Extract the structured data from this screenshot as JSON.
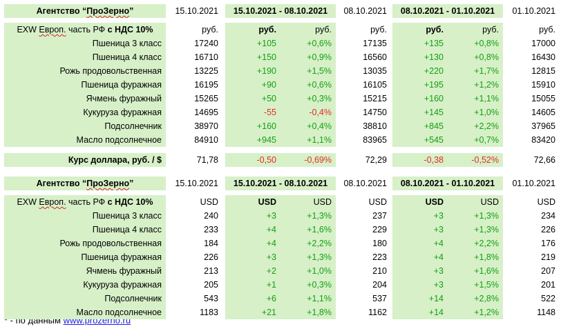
{
  "colors": {
    "band": "#d7f0c8",
    "positive": "#13a013",
    "negative": "#e52b2b",
    "link": "#1a1ae0"
  },
  "rub": {
    "header": {
      "agency": "Агентство “ПроЗерно”",
      "d1": "15.10.2021",
      "p1": "15.10.2021 - 08.10.2021",
      "d2": "08.10.2021",
      "p2": "08.10.2021 - 01.10.2021",
      "d3": "01.10.2021"
    },
    "units": {
      "label": "EXW Европ. часть РФ с НДС 10%",
      "c1": "руб.",
      "c2": "руб.",
      "c3": "руб.",
      "c4": "руб.",
      "c5": "руб.",
      "c6": "руб.",
      "c7": "руб."
    },
    "rows": [
      [
        "Пшеница 3 класс",
        "17240",
        "+105",
        "+0,6%",
        "17135",
        "+135",
        "+0,8%",
        "17000"
      ],
      [
        "Пшеница 4 класс",
        "16710",
        "+150",
        "+0,9%",
        "16560",
        "+130",
        "+0,8%",
        "16430"
      ],
      [
        "Рожь продовольственная",
        "13225",
        "+190",
        "+1,5%",
        "13035",
        "+220",
        "+1,7%",
        "12815"
      ],
      [
        "Пшеница фуражная",
        "16195",
        "+90",
        "+0,6%",
        "16105",
        "+195",
        "+1,2%",
        "15910"
      ],
      [
        "Ячмень фуражный",
        "15265",
        "+50",
        "+0,3%",
        "15215",
        "+160",
        "+1,1%",
        "15055"
      ],
      [
        "Кукуруза фуражная",
        "14695",
        "-55",
        "-0,4%",
        "14750",
        "+145",
        "+1,0%",
        "14605"
      ],
      [
        "Подсолнечник",
        "38970",
        "+160",
        "+0,4%",
        "38810",
        "+845",
        "+2,2%",
        "37965"
      ],
      [
        "Масло подсолнечное",
        "84910",
        "+945",
        "+1,1%",
        "83965",
        "+545",
        "+0,7%",
        "83420"
      ]
    ]
  },
  "usd_rate": {
    "label": "Курс доллара, руб. / $",
    "v1": "71,78",
    "ch1": "-0,50",
    "pc1": "-0,69%",
    "v2": "72,29",
    "ch2": "-0,38",
    "pc2": "-0,52%",
    "v3": "72,66"
  },
  "usd": {
    "header": {
      "agency": "Агентство “ПроЗерно”",
      "d1": "15.10.2021",
      "p1": "15.10.2021 - 08.10.2021",
      "d2": "08.10.2021",
      "p2": "08.10.2021 - 01.10.2021",
      "d3": "01.10.2021"
    },
    "units": {
      "label": "EXW Европ. часть РФ с НДС 10%",
      "c1": "USD",
      "c2": "USD",
      "c3": "USD",
      "c4": "USD",
      "c5": "USD",
      "c6": "USD",
      "c7": "USD"
    },
    "rows": [
      [
        "Пшеница 3 класс",
        "240",
        "+3",
        "+1,3%",
        "237",
        "+3",
        "+1,3%",
        "234"
      ],
      [
        "Пшеница 4 класс",
        "233",
        "+4",
        "+1,6%",
        "229",
        "+3",
        "+1,3%",
        "226"
      ],
      [
        "Рожь продовольственная",
        "184",
        "+4",
        "+2,2%",
        "180",
        "+4",
        "+2,2%",
        "176"
      ],
      [
        "Пшеница фуражная",
        "226",
        "+3",
        "+1,3%",
        "223",
        "+4",
        "+1,8%",
        "219"
      ],
      [
        "Ячмень фуражный",
        "213",
        "+2",
        "+1,0%",
        "210",
        "+3",
        "+1,6%",
        "207"
      ],
      [
        "Кукуруза фуражная",
        "205",
        "+1",
        "+0,3%",
        "204",
        "+3",
        "+1,5%",
        "201"
      ],
      [
        "Подсолнечник",
        "543",
        "+6",
        "+1,1%",
        "537",
        "+14",
        "+2,8%",
        "522"
      ],
      [
        "Масло подсолнечное",
        "1183",
        "+21",
        "+1,8%",
        "1162",
        "+14",
        "+1,2%",
        "1148"
      ]
    ]
  },
  "footnote": {
    "prefix": "* - по данным",
    "link": "www.prozerno.ru"
  }
}
